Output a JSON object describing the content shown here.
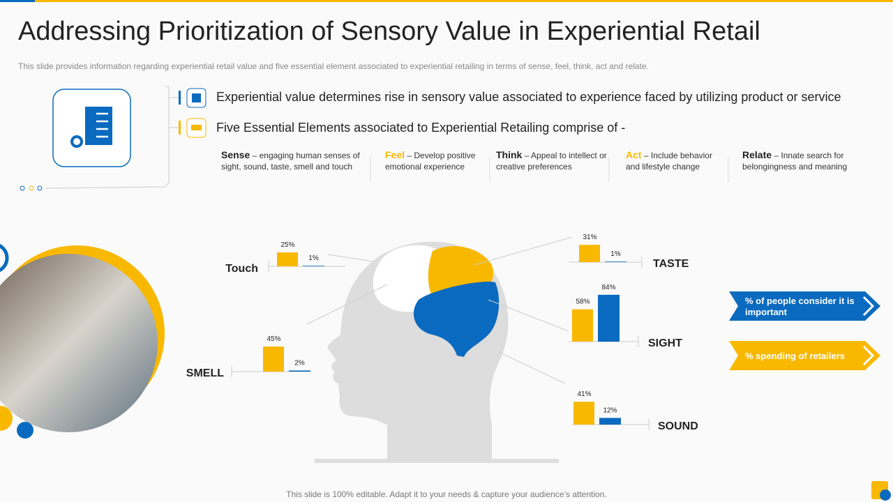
{
  "header": {
    "title": "Addressing Prioritization of Sensory Value in Experiential Retail",
    "subtitle": "This slide provides information regarding experiential retail value and five essential element associated to experiential retailing in terms of sense, feel, think, act and relate."
  },
  "bullets": [
    "Experiential value determines rise in sensory value associated to experience faced by utilizing product or service",
    "Five Essential Elements associated to Experiential Retailing comprise of -"
  ],
  "elements": [
    {
      "name": "Sense",
      "text": "– engaging human senses of sight, sound, taste, smell and touch"
    },
    {
      "name": "Feel",
      "text": "– Develop positive emotional experience"
    },
    {
      "name": "Think",
      "text": "– Appeal to intellect or creative preferences"
    },
    {
      "name": "Act",
      "text": "– Include behavior and lifestyle change"
    },
    {
      "name": "Relate",
      "text": "– Innate search for belongingness and meaning"
    }
  ],
  "legend": [
    {
      "name": "% spending of retailers",
      "color": "#f9b800"
    },
    {
      "name": "% of people consider it is important",
      "color": "#0a6abf"
    }
  ],
  "chart_data": [
    {
      "type": "bar",
      "title": "Touch",
      "values": [
        25,
        1
      ],
      "value_labels": [
        "25%",
        "1%"
      ]
    },
    {
      "type": "bar",
      "title": "SMELL",
      "values": [
        45,
        2
      ],
      "value_labels": [
        "45%",
        "2%"
      ]
    },
    {
      "type": "bar",
      "title": "TASTE",
      "values": [
        31,
        1
      ],
      "value_labels": [
        "31%",
        "1%"
      ]
    },
    {
      "type": "bar",
      "title": "SIGHT",
      "values": [
        58,
        84
      ],
      "value_labels": [
        "58%",
        "84%"
      ]
    },
    {
      "type": "bar",
      "title": "SOUND",
      "values": [
        41,
        12
      ],
      "value_labels": [
        "41%",
        "12%"
      ]
    }
  ],
  "footer": "This slide is 100% editable. Adapt it to your needs & capture your audience’s attention."
}
